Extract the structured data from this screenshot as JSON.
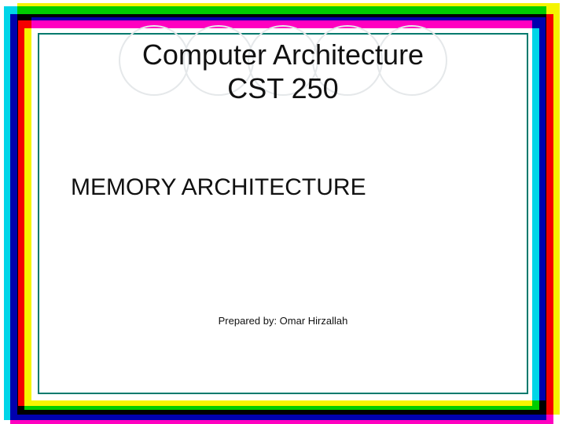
{
  "slide": {
    "title_line1": "Computer Architecture",
    "title_line2": "CST 250",
    "subtitle": "MEMORY ARCHITECTURE",
    "author": "Prepared by: Omar Hirzallah"
  },
  "style": {
    "border_colors": {
      "cyan": "#00d5e8",
      "yellow": "#f5f500",
      "magenta": "#ff00c0"
    },
    "inner_border_color": "#007a6d",
    "circle_border_color": "#e5e8ea",
    "circle_count": 5,
    "circle_diameter": 90,
    "title_fontsize": 36,
    "subtitle_fontsize": 30,
    "author_fontsize": 13,
    "background": "#ffffff",
    "text_color": "#111111"
  }
}
